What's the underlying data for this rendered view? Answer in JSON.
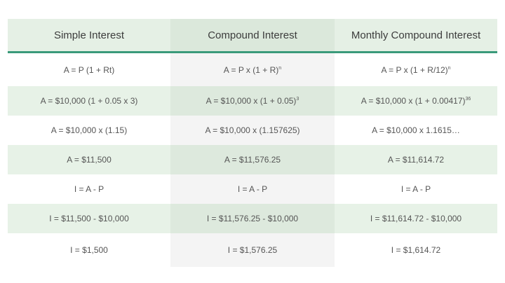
{
  "headers": [
    "Simple Interest",
    "Compound Interest",
    "Monthly Compound Interest"
  ],
  "rows": [
    [
      {
        "text": "A = P (1 + Rt)",
        "sup": ""
      },
      {
        "text": "A = P x (1 + R)",
        "sup": "n"
      },
      {
        "text": "A = P x (1 + R/12)",
        "sup": "n"
      }
    ],
    [
      {
        "text": "A = $10,000 (1 + 0.05 x 3)",
        "sup": ""
      },
      {
        "text": "A = $10,000 x (1 + 0.05)",
        "sup": "3"
      },
      {
        "text": "A = $10,000 x (1 + 0.00417)",
        "sup": "36"
      }
    ],
    [
      {
        "text": "A = $10,000 x (1.15)",
        "sup": ""
      },
      {
        "text": "A = $10,000 x (1.157625)",
        "sup": ""
      },
      {
        "text": "A = $10,000 x 1.1615…",
        "sup": ""
      }
    ],
    [
      {
        "text": "A = $11,500",
        "sup": ""
      },
      {
        "text": "A = $11,576.25",
        "sup": ""
      },
      {
        "text": "A = $11,614.72",
        "sup": ""
      }
    ],
    [
      {
        "text": "I = A - P",
        "sup": ""
      },
      {
        "text": "I = A - P",
        "sup": ""
      },
      {
        "text": "I = A - P",
        "sup": ""
      }
    ],
    [
      {
        "text": "I = $11,500 - $10,000",
        "sup": ""
      },
      {
        "text": "I = $11,576.25 - $10,000",
        "sup": ""
      },
      {
        "text": "I = $11,614.72 - $10,000",
        "sup": ""
      }
    ],
    [
      {
        "text": "I = $1,500",
        "sup": ""
      },
      {
        "text": "I = $1,576.25",
        "sup": ""
      },
      {
        "text": "I = $1,614.72",
        "sup": ""
      }
    ]
  ],
  "colors": {
    "header_bg": "#e5f0e5",
    "shaded_row": "#e7f2e7",
    "accent_rule": "#3a9a7a"
  }
}
